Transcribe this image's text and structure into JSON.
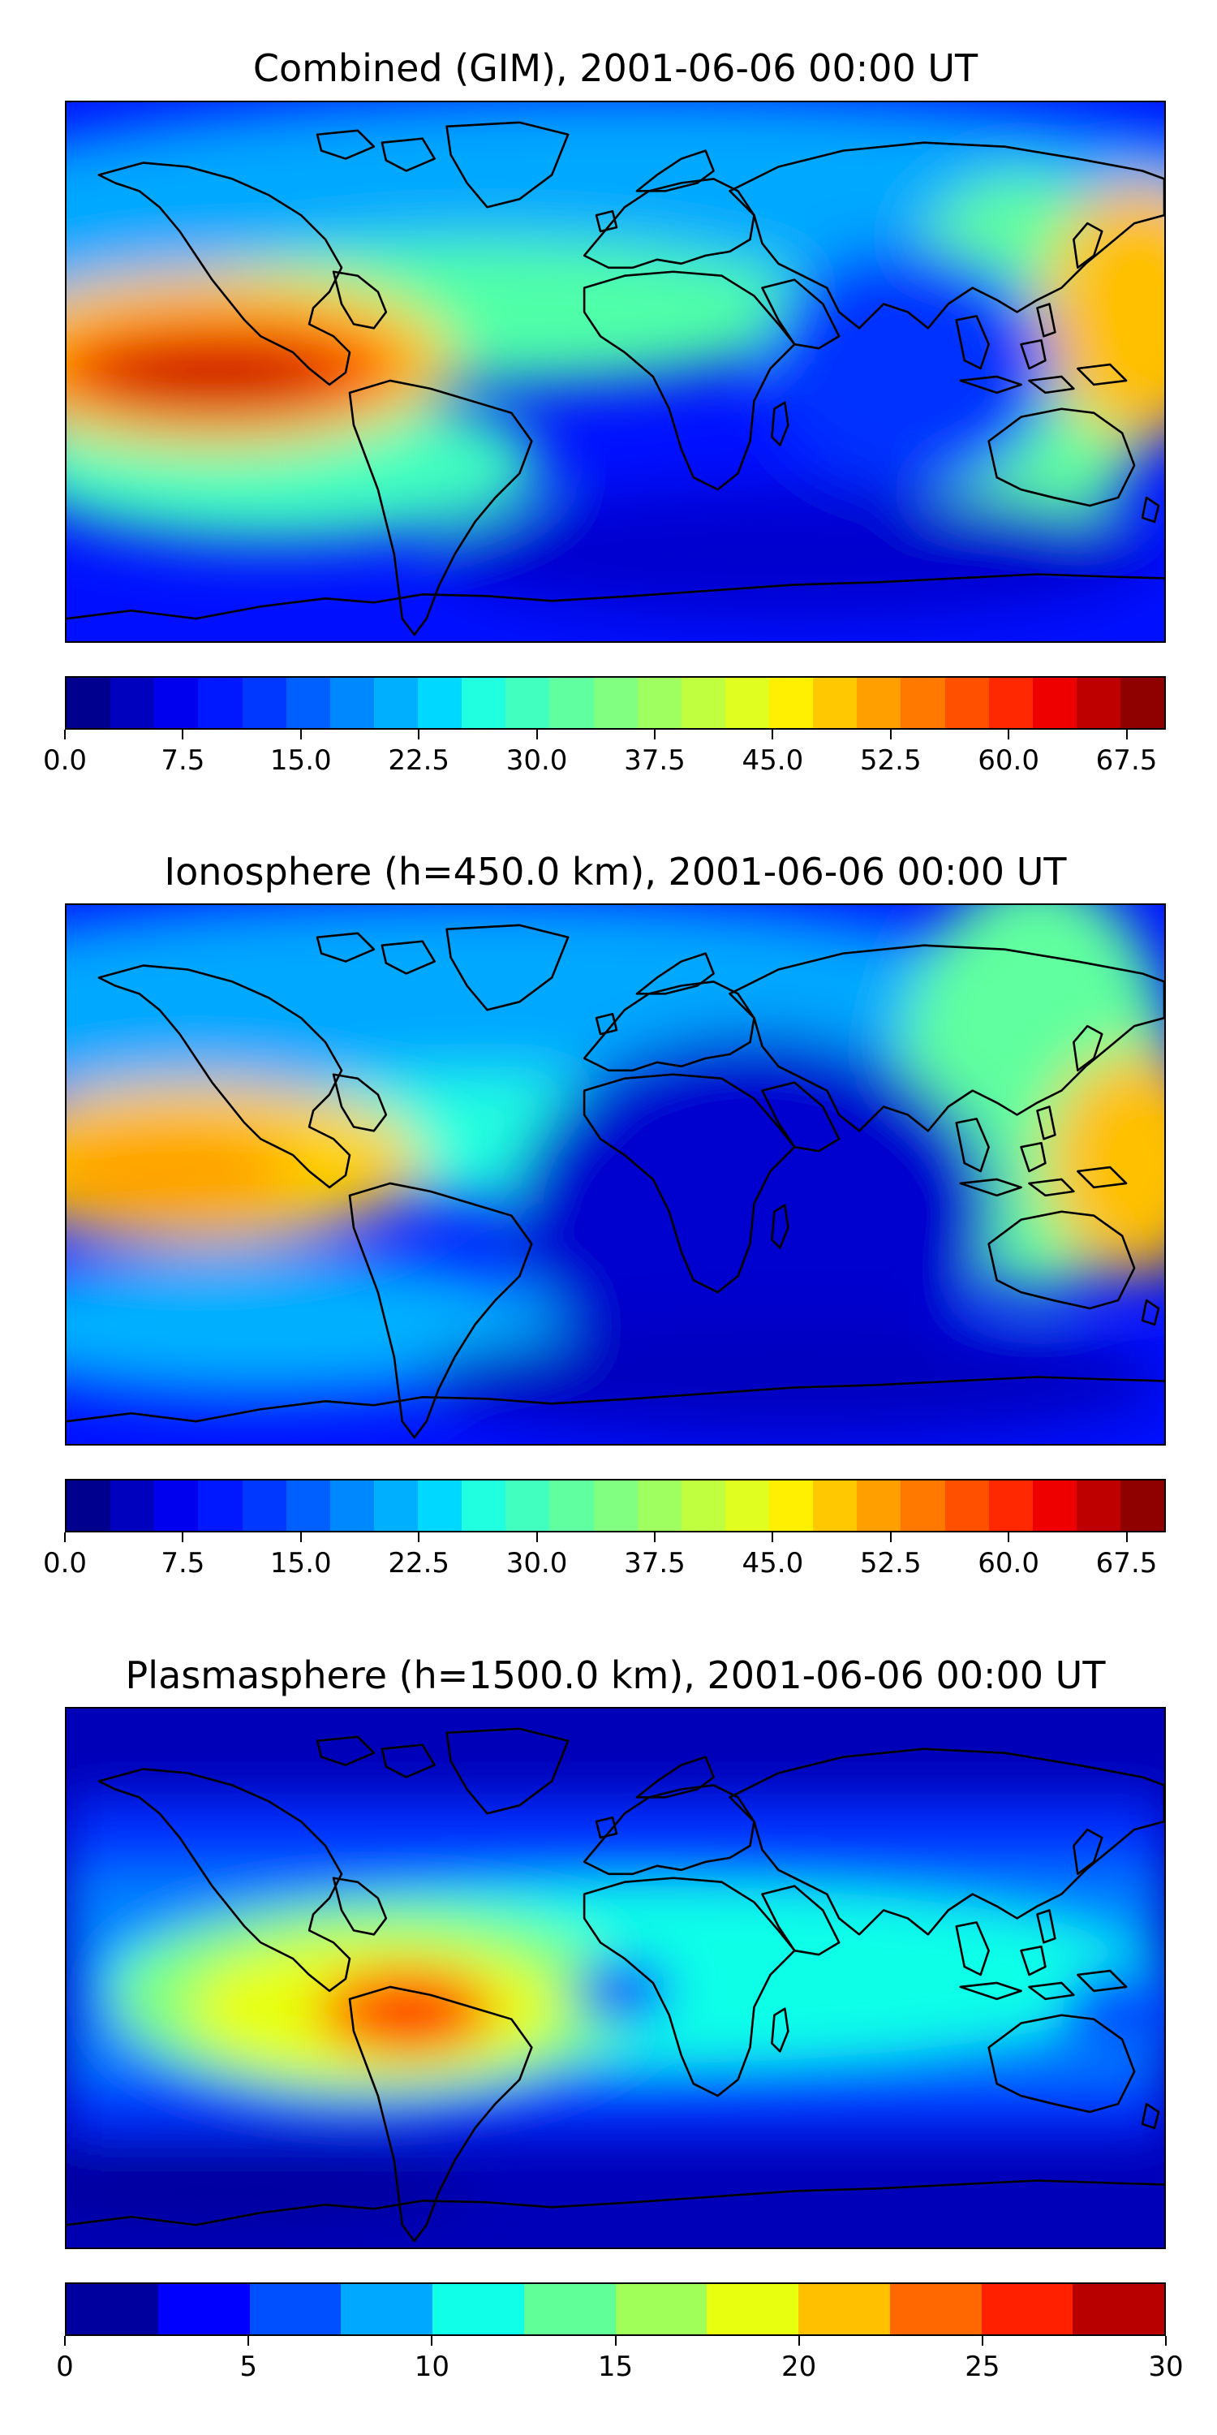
{
  "panels": [
    {
      "title": "Combined (GIM), 2001-06-06 00:00 UT",
      "colorbar": {
        "min": 0,
        "max": 70,
        "colors": [
          "#00008f",
          "#0000bf",
          "#0000ef",
          "#0018ff",
          "#0038ff",
          "#0060ff",
          "#0088ff",
          "#00b0ff",
          "#00d8ff",
          "#20ffdf",
          "#40ffbf",
          "#60ff9f",
          "#80ff80",
          "#a0ff60",
          "#c0ff40",
          "#e0ff20",
          "#ffef00",
          "#ffc800",
          "#ffa000",
          "#ff7800",
          "#ff5000",
          "#ff2800",
          "#ef0000",
          "#bf0000",
          "#8f0000"
        ],
        "ticks": [
          "0.0",
          "7.5",
          "15.0",
          "22.5",
          "30.0",
          "37.5",
          "45.0",
          "52.5",
          "60.0",
          "67.5"
        ]
      }
    },
    {
      "title": "Ionosphere  (h=450.0 km), 2001-06-06 00:00 UT",
      "colorbar": {
        "min": 0,
        "max": 70,
        "colors": [
          "#00008f",
          "#0000bf",
          "#0000ef",
          "#0018ff",
          "#0038ff",
          "#0060ff",
          "#0088ff",
          "#00b0ff",
          "#00d8ff",
          "#20ffdf",
          "#40ffbf",
          "#60ff9f",
          "#80ff80",
          "#a0ff60",
          "#c0ff40",
          "#e0ff20",
          "#ffef00",
          "#ffc800",
          "#ffa000",
          "#ff7800",
          "#ff5000",
          "#ff2800",
          "#ef0000",
          "#bf0000",
          "#8f0000"
        ],
        "ticks": [
          "0.0",
          "7.5",
          "15.0",
          "22.5",
          "30.0",
          "37.5",
          "45.0",
          "52.5",
          "60.0",
          "67.5"
        ]
      }
    },
    {
      "title": "Plasmasphere (h=1500.0 km), 2001-06-06 00:00 UT",
      "colorbar": {
        "min": 0,
        "max": 30,
        "colors": [
          "#00009f",
          "#0000ff",
          "#0050ff",
          "#00a8ff",
          "#10ffe8",
          "#60ff98",
          "#a0ff58",
          "#e8ff10",
          "#ffc000",
          "#ff6800",
          "#ff2000",
          "#b80000"
        ],
        "ticks": [
          "0",
          "5",
          "10",
          "15",
          "20",
          "25",
          "30"
        ]
      }
    }
  ]
}
